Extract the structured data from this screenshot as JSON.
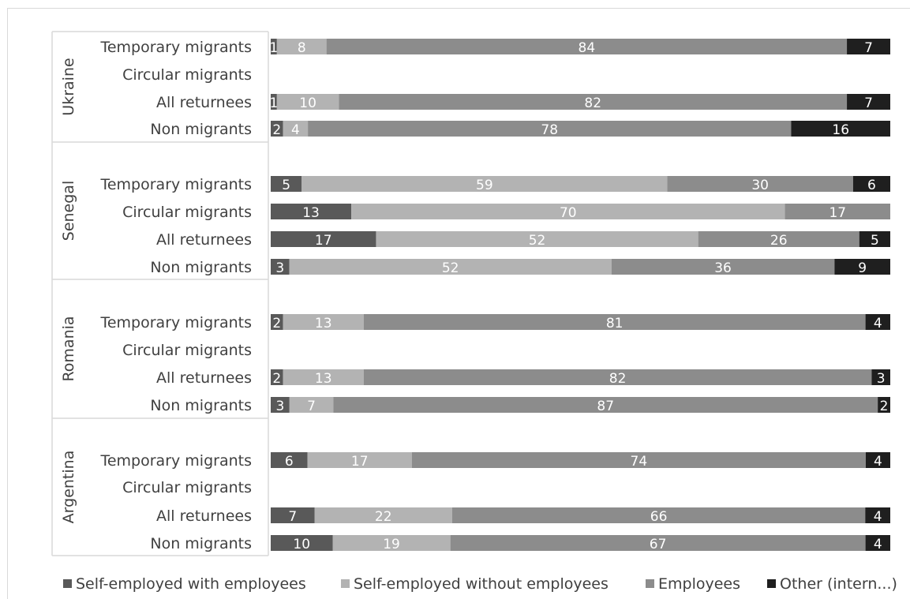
{
  "chart_data": {
    "type": "bar",
    "orientation": "horizontal",
    "stacked": "100%",
    "legend_position": "bottom",
    "series": [
      {
        "name": "Self-employed with employees",
        "color": "#595959"
      },
      {
        "name": "Self-employed without employees",
        "color": "#b3b3b3"
      },
      {
        "name": "Employees",
        "color": "#8c8c8c"
      },
      {
        "name": "Other (intern...)",
        "color": "#1f1f1f"
      }
    ],
    "groups": [
      {
        "name": "Ukraine",
        "rows": [
          {
            "label": "Temporary migrants",
            "values": [
              1,
              8,
              84,
              7
            ]
          },
          {
            "label": "Circular migrants",
            "values": []
          },
          {
            "label": "All returnees",
            "values": [
              1,
              10,
              82,
              7
            ]
          },
          {
            "label": "Non migrants",
            "values": [
              2,
              4,
              78,
              16
            ]
          }
        ]
      },
      {
        "name": "Senegal",
        "rows": [
          {
            "label": "Temporary migrants",
            "values": [
              5,
              59,
              30,
              6
            ]
          },
          {
            "label": "Circular migrants",
            "values": [
              13,
              70,
              17,
              0
            ]
          },
          {
            "label": "All returnees",
            "values": [
              17,
              52,
              26,
              5
            ]
          },
          {
            "label": "Non migrants",
            "values": [
              3,
              52,
              36,
              9
            ]
          }
        ]
      },
      {
        "name": "Romania",
        "rows": [
          {
            "label": "Temporary migrants",
            "values": [
              2,
              13,
              81,
              4
            ]
          },
          {
            "label": "Circular migrants",
            "values": []
          },
          {
            "label": "All returnees",
            "values": [
              2,
              13,
              82,
              3
            ]
          },
          {
            "label": "Non migrants",
            "values": [
              3,
              7,
              87,
              2
            ]
          }
        ]
      },
      {
        "name": "Argentina",
        "rows": [
          {
            "label": "Temporary migrants",
            "values": [
              6,
              17,
              74,
              4
            ]
          },
          {
            "label": "Circular migrants",
            "values": []
          },
          {
            "label": "All returnees",
            "values": [
              7,
              22,
              66,
              4
            ]
          },
          {
            "label": "Non migrants",
            "values": [
              10,
              19,
              67,
              4
            ]
          }
        ]
      }
    ]
  }
}
